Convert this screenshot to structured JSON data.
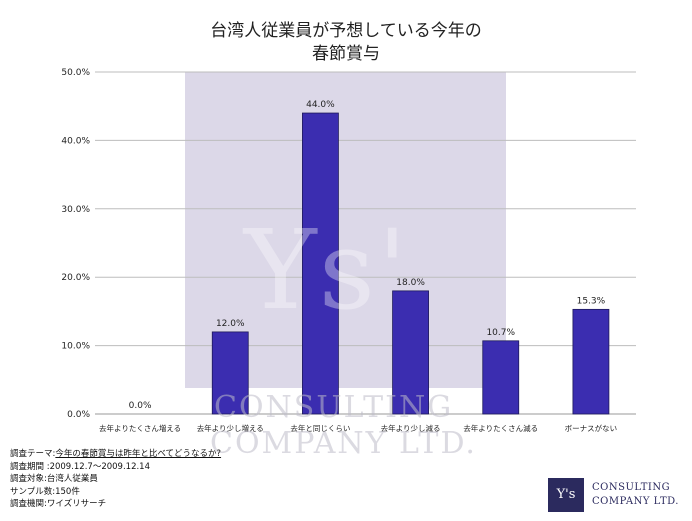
{
  "chart_data": {
    "type": "bar",
    "title_line1": "台湾人従業員が予想している今年の",
    "title_line2": "春節賞与",
    "categories": [
      "去年よりたくさん増える",
      "去年より少し増える",
      "去年と同じくらい",
      "去年より少し減る",
      "去年よりたくさん減る",
      "ボーナスがない"
    ],
    "values": [
      0.0,
      12.0,
      44.0,
      18.0,
      10.7,
      15.3
    ],
    "value_labels": [
      "0.0%",
      "12.0%",
      "44.0%",
      "18.0%",
      "10.7%",
      "15.3%"
    ],
    "y_ticks": [
      "0.0%",
      "10.0%",
      "20.0%",
      "30.0%",
      "40.0%",
      "50.0%"
    ],
    "ylim": [
      0,
      50
    ],
    "grid": true,
    "bar_color": "#3b2db0"
  },
  "watermark": {
    "mark": "Ys'",
    "line1": "CONSULTING",
    "line2": "COMPANY LTD."
  },
  "footer": {
    "theme_label": "調査テーマ:",
    "theme_value": "今年の春節賞与は昨年と比べてどうなるか?",
    "period": "調査期間 :2009.12.7〜2009.12.14",
    "target": "調査対象:台湾人従業員",
    "sample": "サンプル数:150件",
    "org": "調査機関:ワイズリサーチ"
  },
  "logo": {
    "mark": "Y's",
    "line1": "CONSULTING",
    "line2": "COMPANY LTD."
  }
}
